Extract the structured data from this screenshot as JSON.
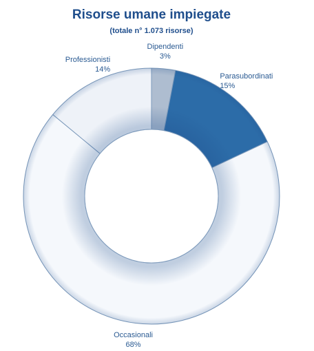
{
  "chart_data": {
    "type": "donut",
    "title": "Risorse umane impiegate",
    "subtitle": "(totale n° 1.073 risorse)",
    "categories": [
      "Dipendenti",
      "Parasubordinati",
      "Occasionali",
      "Professionisti"
    ],
    "values": [
      3,
      15,
      68,
      14
    ],
    "value_labels": [
      "3%",
      "15%",
      "68%",
      "14%"
    ],
    "colors": [
      "#aebdd0",
      "#2c6ca8",
      "#f5f8fc",
      "#eef2f8"
    ]
  }
}
